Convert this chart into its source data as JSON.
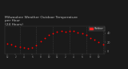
{
  "title": "Milwaukee Weather Outdoor Temperature\nper Hour\n(24 Hours)",
  "title_fontsize": 3.2,
  "title_color": "#bbbbbb",
  "background_color": "#1a1a1a",
  "plot_bg_color": "#1a1a1a",
  "grid_color": "#444444",
  "dot_color": "#ff0000",
  "hours": [
    0,
    1,
    2,
    3,
    4,
    5,
    6,
    7,
    8,
    9,
    10,
    11,
    12,
    13,
    14,
    15,
    16,
    17,
    18,
    19,
    20,
    21,
    22,
    23
  ],
  "temps": [
    18,
    15,
    12,
    10,
    8,
    7,
    9,
    14,
    22,
    30,
    36,
    40,
    43,
    44,
    43,
    44,
    44,
    42,
    40,
    36,
    30,
    25,
    20,
    16
  ],
  "tick_color": "#999999",
  "ylim": [
    -5,
    55
  ],
  "yticks": [
    0,
    20,
    40
  ],
  "ytick_labels": [
    "0",
    "20",
    "40"
  ],
  "xtick_positions": [
    0,
    2,
    4,
    6,
    8,
    10,
    12,
    14,
    16,
    18,
    20,
    22
  ],
  "xtick_labels": [
    "12",
    "2",
    "4",
    "6",
    "8",
    "10",
    "12",
    "2",
    "4",
    "6",
    "8",
    "10"
  ],
  "vline_positions": [
    3,
    7,
    11,
    15,
    19,
    23
  ],
  "legend_label": "Outdoor",
  "legend_bar_color": "#ff2222",
  "legend_text_color": "#dddddd",
  "dot_size": 1.8,
  "spine_color": "#444444"
}
